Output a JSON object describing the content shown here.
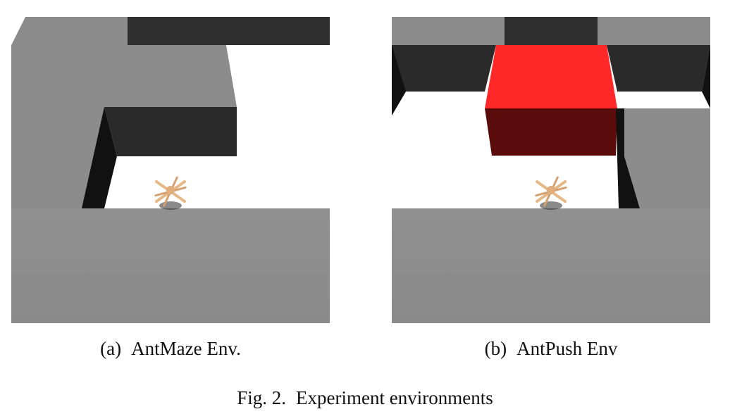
{
  "subfigures": [
    {
      "label": "(a)",
      "name": "AntMaze Env."
    },
    {
      "label": "(b)",
      "name": "AntPush Env"
    }
  ],
  "figure": {
    "label": "Fig. 2.",
    "caption": "Experiment environments"
  },
  "colors": {
    "wall_top": "#8c8c8c",
    "wall_side": "#2a2a2a",
    "floor": "#ffffff",
    "block_top": "#ff2828",
    "block_side": "#5a0c0c",
    "ant_body": "#e6b888"
  }
}
